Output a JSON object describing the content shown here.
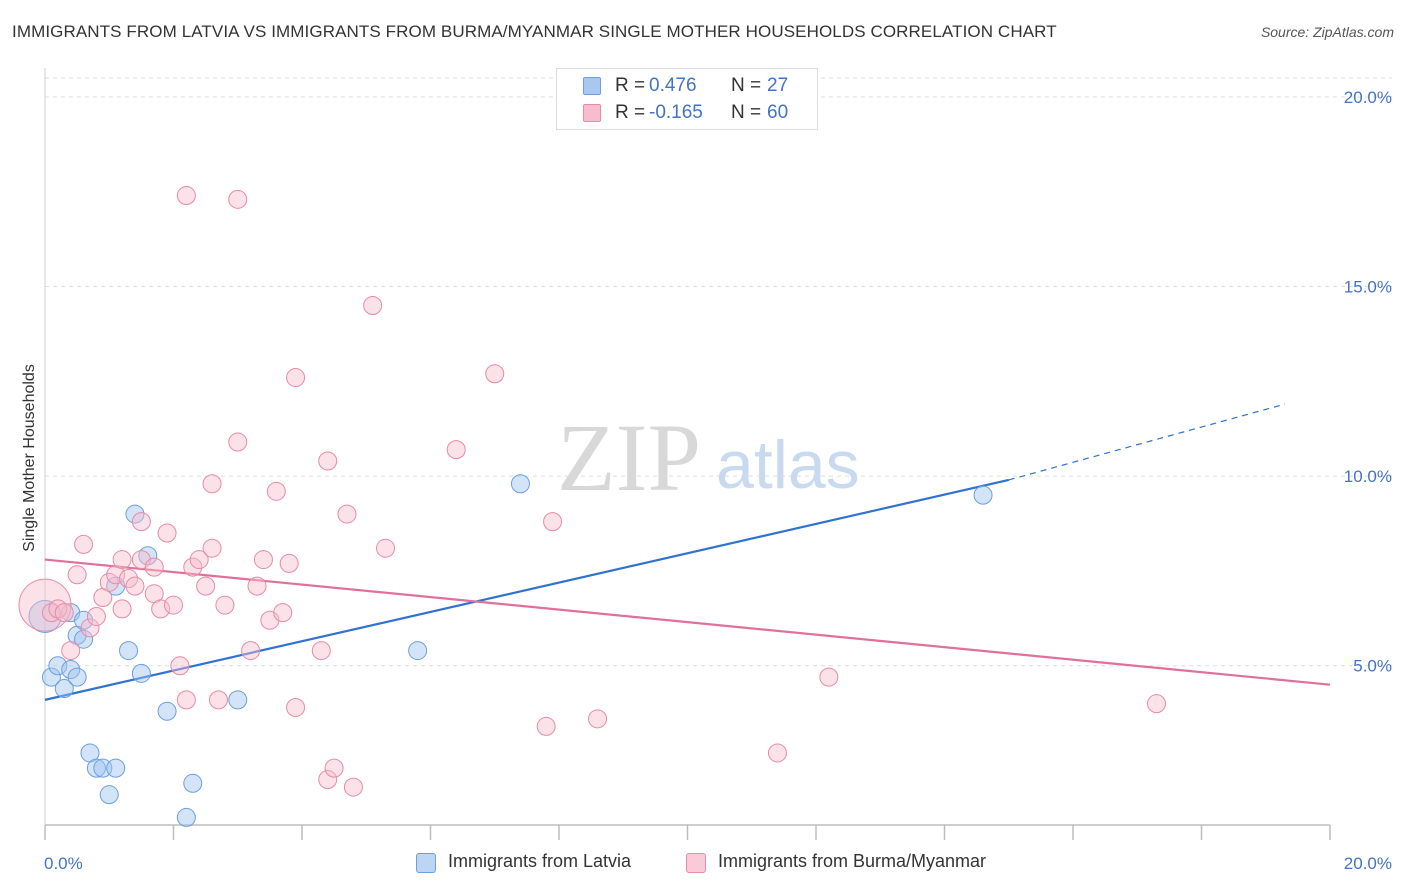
{
  "title": "IMMIGRANTS FROM LATVIA VS IMMIGRANTS FROM BURMA/MYANMAR SINGLE MOTHER HOUSEHOLDS CORRELATION CHART",
  "source": "Source: ZipAtlas.com",
  "watermark": {
    "zip": "ZIP",
    "atlas": "atlas"
  },
  "legend_top": {
    "rows": [
      {
        "r_label": "R =",
        "r_value": "0.476",
        "n_label": "N =",
        "n_value": "27",
        "color": "#a9c8f0",
        "border": "#6a9fe0"
      },
      {
        "r_label": "R =",
        "r_value": "-0.165",
        "n_label": "N =",
        "n_value": "60",
        "color": "#f7bccd",
        "border": "#e88aa8"
      }
    ]
  },
  "legend_bottom": [
    {
      "label": "Immigrants from Latvia",
      "color": "#bcd5f5",
      "border": "#6a9fe0"
    },
    {
      "label": "Immigrants from Burma/Myanmar",
      "color": "#f9cad8",
      "border": "#e88aa8"
    }
  ],
  "chart_data": {
    "type": "scatter",
    "title": "IMMIGRANTS FROM LATVIA VS IMMIGRANTS FROM BURMA/MYANMAR SINGLE MOTHER HOUSEHOLDS CORRELATION CHART",
    "xlabel": "",
    "ylabel": "Single Mother Households",
    "xlim": [
      0,
      20
    ],
    "ylim": [
      0.8,
      20.5
    ],
    "x_tick_labels": [
      "0.0%",
      "20.0%"
    ],
    "y_ticks": [
      5,
      10,
      15,
      20
    ],
    "y_tick_labels": [
      "5.0%",
      "10.0%",
      "15.0%",
      "20.0%"
    ],
    "grid": true,
    "series": [
      {
        "name": "Immigrants from Latvia",
        "color": "#6a9fe0",
        "fill": "rgba(160,196,240,0.45)",
        "line_color": "#2f72d0",
        "trend": {
          "x0": 0,
          "y0": 4.1,
          "x1": 15,
          "y1": 9.9,
          "x_dash_end": 19.3,
          "y_dash_end": 11.9
        },
        "points": [
          [
            0.0,
            6.3
          ],
          [
            0.1,
            4.7
          ],
          [
            0.2,
            5.0
          ],
          [
            0.3,
            4.4
          ],
          [
            0.4,
            4.9
          ],
          [
            0.4,
            6.4
          ],
          [
            0.5,
            5.8
          ],
          [
            0.5,
            4.7
          ],
          [
            0.6,
            6.2
          ],
          [
            0.6,
            5.7
          ],
          [
            0.7,
            2.7
          ],
          [
            0.8,
            2.3
          ],
          [
            0.9,
            2.3
          ],
          [
            1.0,
            1.6
          ],
          [
            1.1,
            7.1
          ],
          [
            1.1,
            2.3
          ],
          [
            1.3,
            5.4
          ],
          [
            1.4,
            9.0
          ],
          [
            1.5,
            4.8
          ],
          [
            1.6,
            7.9
          ],
          [
            1.9,
            3.8
          ],
          [
            2.2,
            1.0
          ],
          [
            2.3,
            1.9
          ],
          [
            3.0,
            4.1
          ],
          [
            5.8,
            5.4
          ],
          [
            7.4,
            9.8
          ],
          [
            14.6,
            9.5
          ]
        ],
        "sizes": {
          "0": 16
        }
      },
      {
        "name": "Immigrants from Burma/Myanmar",
        "color": "#e88aa8",
        "fill": "rgba(247,188,205,0.45)",
        "line_color": "#e0709a",
        "trend": {
          "x0": 0,
          "y0": 7.8,
          "x1": 20,
          "y1": 4.5
        },
        "points": [
          [
            0.0,
            6.6
          ],
          [
            0.1,
            6.4
          ],
          [
            0.2,
            6.5
          ],
          [
            0.3,
            6.4
          ],
          [
            0.4,
            5.4
          ],
          [
            0.5,
            7.4
          ],
          [
            0.6,
            8.2
          ],
          [
            0.7,
            6.0
          ],
          [
            0.8,
            6.3
          ],
          [
            0.9,
            6.8
          ],
          [
            1.0,
            7.2
          ],
          [
            1.1,
            7.4
          ],
          [
            1.2,
            7.8
          ],
          [
            1.2,
            6.5
          ],
          [
            1.3,
            7.3
          ],
          [
            1.4,
            7.1
          ],
          [
            1.5,
            7.8
          ],
          [
            1.5,
            8.8
          ],
          [
            1.7,
            7.6
          ],
          [
            1.7,
            6.9
          ],
          [
            1.8,
            6.5
          ],
          [
            1.9,
            8.5
          ],
          [
            2.0,
            6.6
          ],
          [
            2.1,
            5.0
          ],
          [
            2.2,
            17.4
          ],
          [
            2.2,
            4.1
          ],
          [
            2.3,
            7.6
          ],
          [
            2.4,
            7.8
          ],
          [
            2.5,
            7.1
          ],
          [
            2.6,
            8.1
          ],
          [
            2.6,
            9.8
          ],
          [
            2.7,
            4.1
          ],
          [
            2.8,
            6.6
          ],
          [
            3.0,
            10.9
          ],
          [
            3.0,
            17.3
          ],
          [
            3.2,
            5.4
          ],
          [
            3.3,
            7.1
          ],
          [
            3.4,
            7.8
          ],
          [
            3.5,
            6.2
          ],
          [
            3.6,
            9.6
          ],
          [
            3.7,
            6.4
          ],
          [
            3.8,
            7.7
          ],
          [
            3.9,
            12.6
          ],
          [
            3.9,
            3.9
          ],
          [
            4.3,
            5.4
          ],
          [
            4.4,
            10.4
          ],
          [
            4.4,
            2.0
          ],
          [
            4.5,
            2.3
          ],
          [
            4.7,
            9.0
          ],
          [
            4.8,
            1.8
          ],
          [
            5.1,
            14.5
          ],
          [
            5.3,
            8.1
          ],
          [
            6.4,
            10.7
          ],
          [
            7.0,
            12.7
          ],
          [
            7.8,
            3.4
          ],
          [
            7.9,
            8.8
          ],
          [
            8.6,
            3.6
          ],
          [
            11.4,
            2.7
          ],
          [
            12.2,
            4.7
          ],
          [
            17.3,
            4.0
          ]
        ],
        "sizes": {
          "0": 26
        }
      }
    ]
  }
}
